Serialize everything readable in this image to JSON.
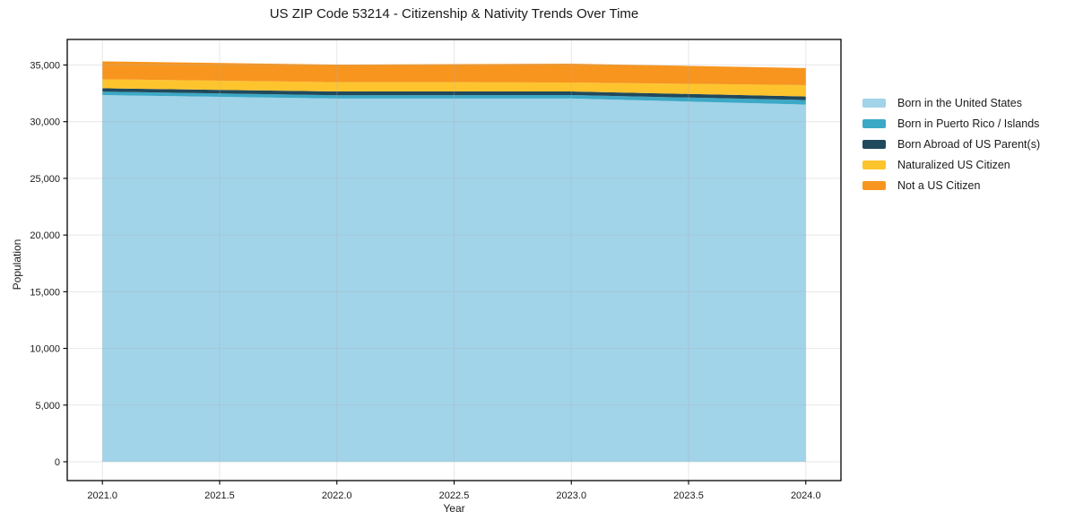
{
  "figure": {
    "background": "#ffffff",
    "text_color": "#1a1a1a",
    "spine_color": "#000000",
    "grid_color": "#b0b0b0"
  },
  "chart_data": {
    "type": "area",
    "stacked": true,
    "title": "US ZIP Code 53214 - Citizenship & Nativity Trends Over Time",
    "xlabel": "Year",
    "ylabel": "Population",
    "x": [
      2021,
      2022,
      2023,
      2024
    ],
    "series": [
      {
        "name": "Born in the United States",
        "color": "#a1d3e9",
        "values": [
          32350,
          32040,
          32040,
          31510
        ]
      },
      {
        "name": "Born in Puerto Rico / Islands",
        "color": "#3ca9c6",
        "values": [
          300,
          290,
          310,
          400
        ]
      },
      {
        "name": "Born Abroad of US Parent(s)",
        "color": "#21495c",
        "values": [
          300,
          340,
          320,
          310
        ]
      },
      {
        "name": "Naturalized US Citizen",
        "color": "#fdc42e",
        "values": [
          790,
          820,
          790,
          1000
        ]
      },
      {
        "name": "Not a US Citizen",
        "color": "#f7951f",
        "values": [
          1580,
          1550,
          1660,
          1510
        ]
      }
    ],
    "totals": [
      35320,
      35040,
      35120,
      34730
    ],
    "xlim": [
      2020.85,
      2024.15
    ],
    "ylim": [
      -1661,
      37254
    ],
    "xticks": [
      2021.0,
      2021.5,
      2022.0,
      2022.5,
      2023.0,
      2023.5,
      2024.0
    ],
    "xtick_labels": [
      "2021.0",
      "2021.5",
      "2022.0",
      "2022.5",
      "2023.0",
      "2023.5",
      "2024.0"
    ],
    "yticks": [
      0,
      5000,
      10000,
      15000,
      20000,
      25000,
      30000,
      35000
    ],
    "ytick_labels": [
      "0",
      "5,000",
      "10,000",
      "15,000",
      "20,000",
      "25,000",
      "30,000",
      "35,000"
    ],
    "grid": true,
    "legend_position": "right-outside"
  }
}
